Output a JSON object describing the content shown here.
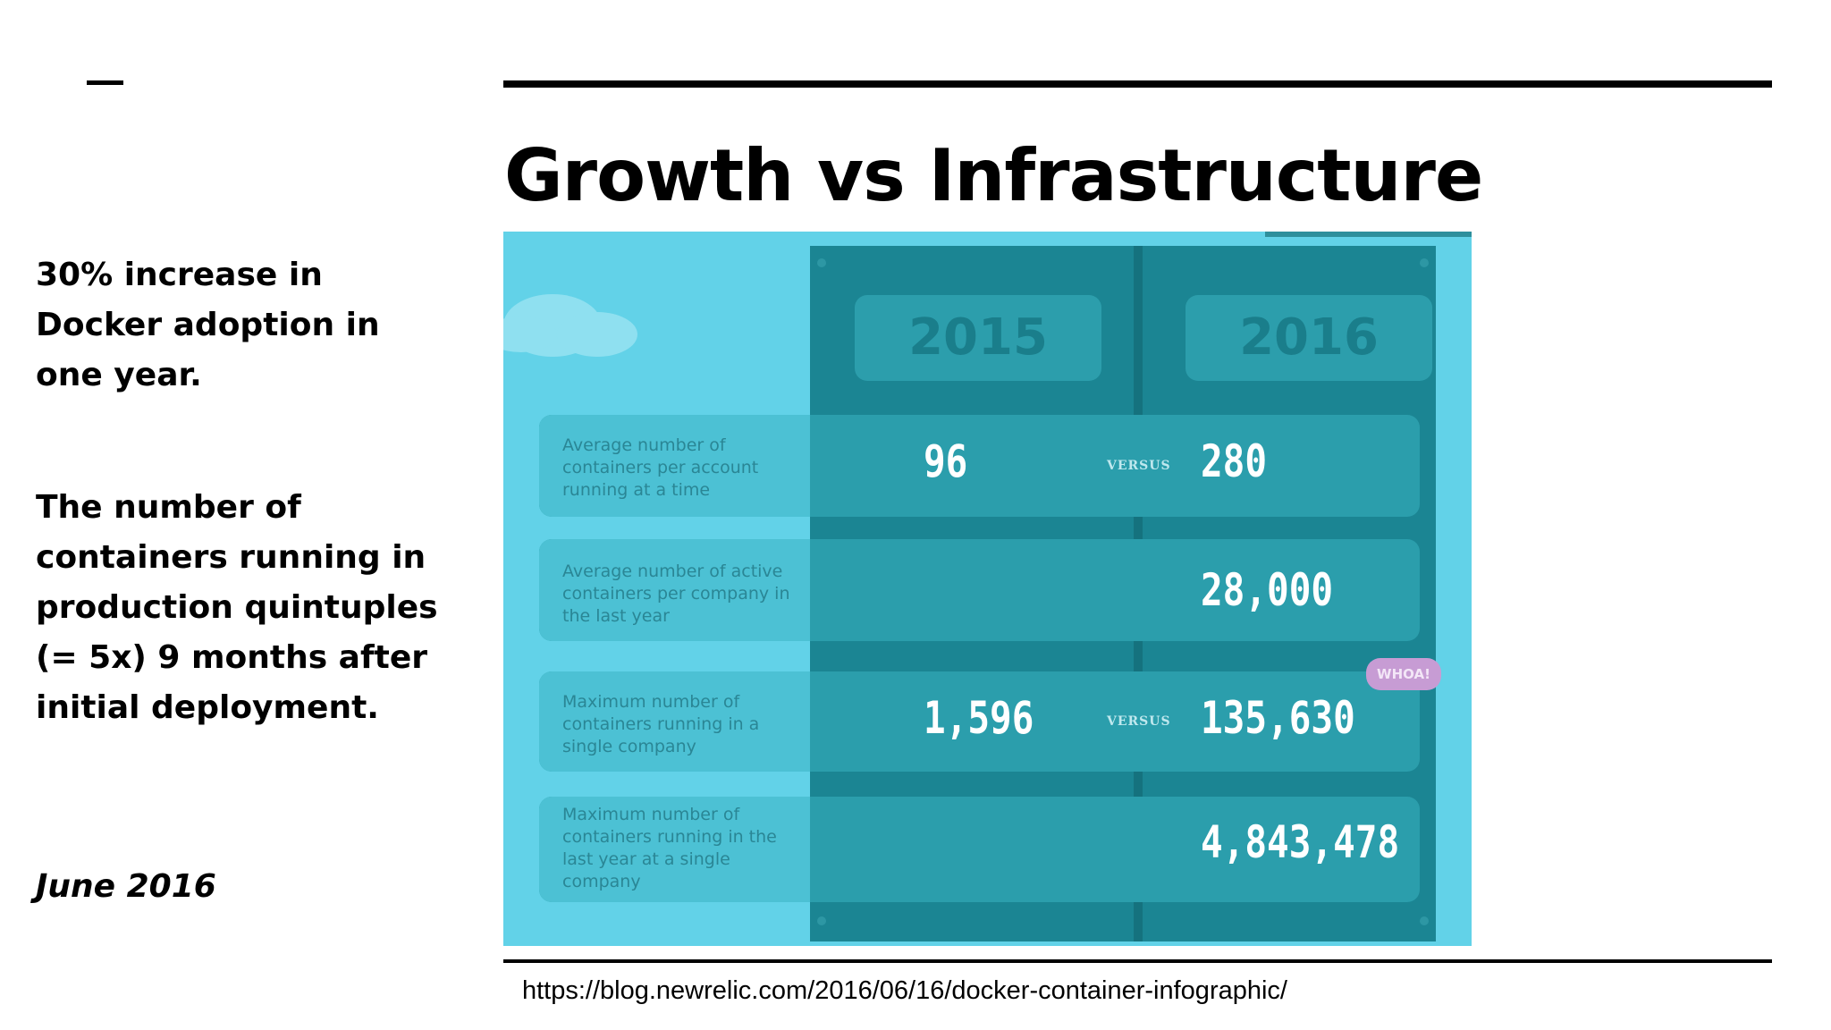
{
  "slide": {
    "title": "Growth vs Infrastructure",
    "side_text_1": "30% increase in Docker adoption in one year.",
    "side_text_2": "The number of containers running in production quintuples (= 5x) 9 months after initial deployment.",
    "date": "June 2016",
    "source_url": "https://blog.newrelic.com/2016/06/16/docker-container-infographic/"
  },
  "infographic": {
    "year_left": "2015",
    "year_right": "2016",
    "versus_label": "VERSUS",
    "badge": "WHOA!",
    "rows": [
      {
        "label": "Average number of containers per account running at a time",
        "value_2015": "96",
        "value_2016": "280"
      },
      {
        "label": "Average number of active containers per company in the last year",
        "value_2015": "",
        "value_2016": "28,000"
      },
      {
        "label": "Maximum number of containers running in a single company",
        "value_2015": "1,596",
        "value_2016": "135,630"
      },
      {
        "label": "Maximum number of containers running in the last year at a single company",
        "value_2015": "",
        "value_2016": "4,843,478"
      }
    ]
  }
}
